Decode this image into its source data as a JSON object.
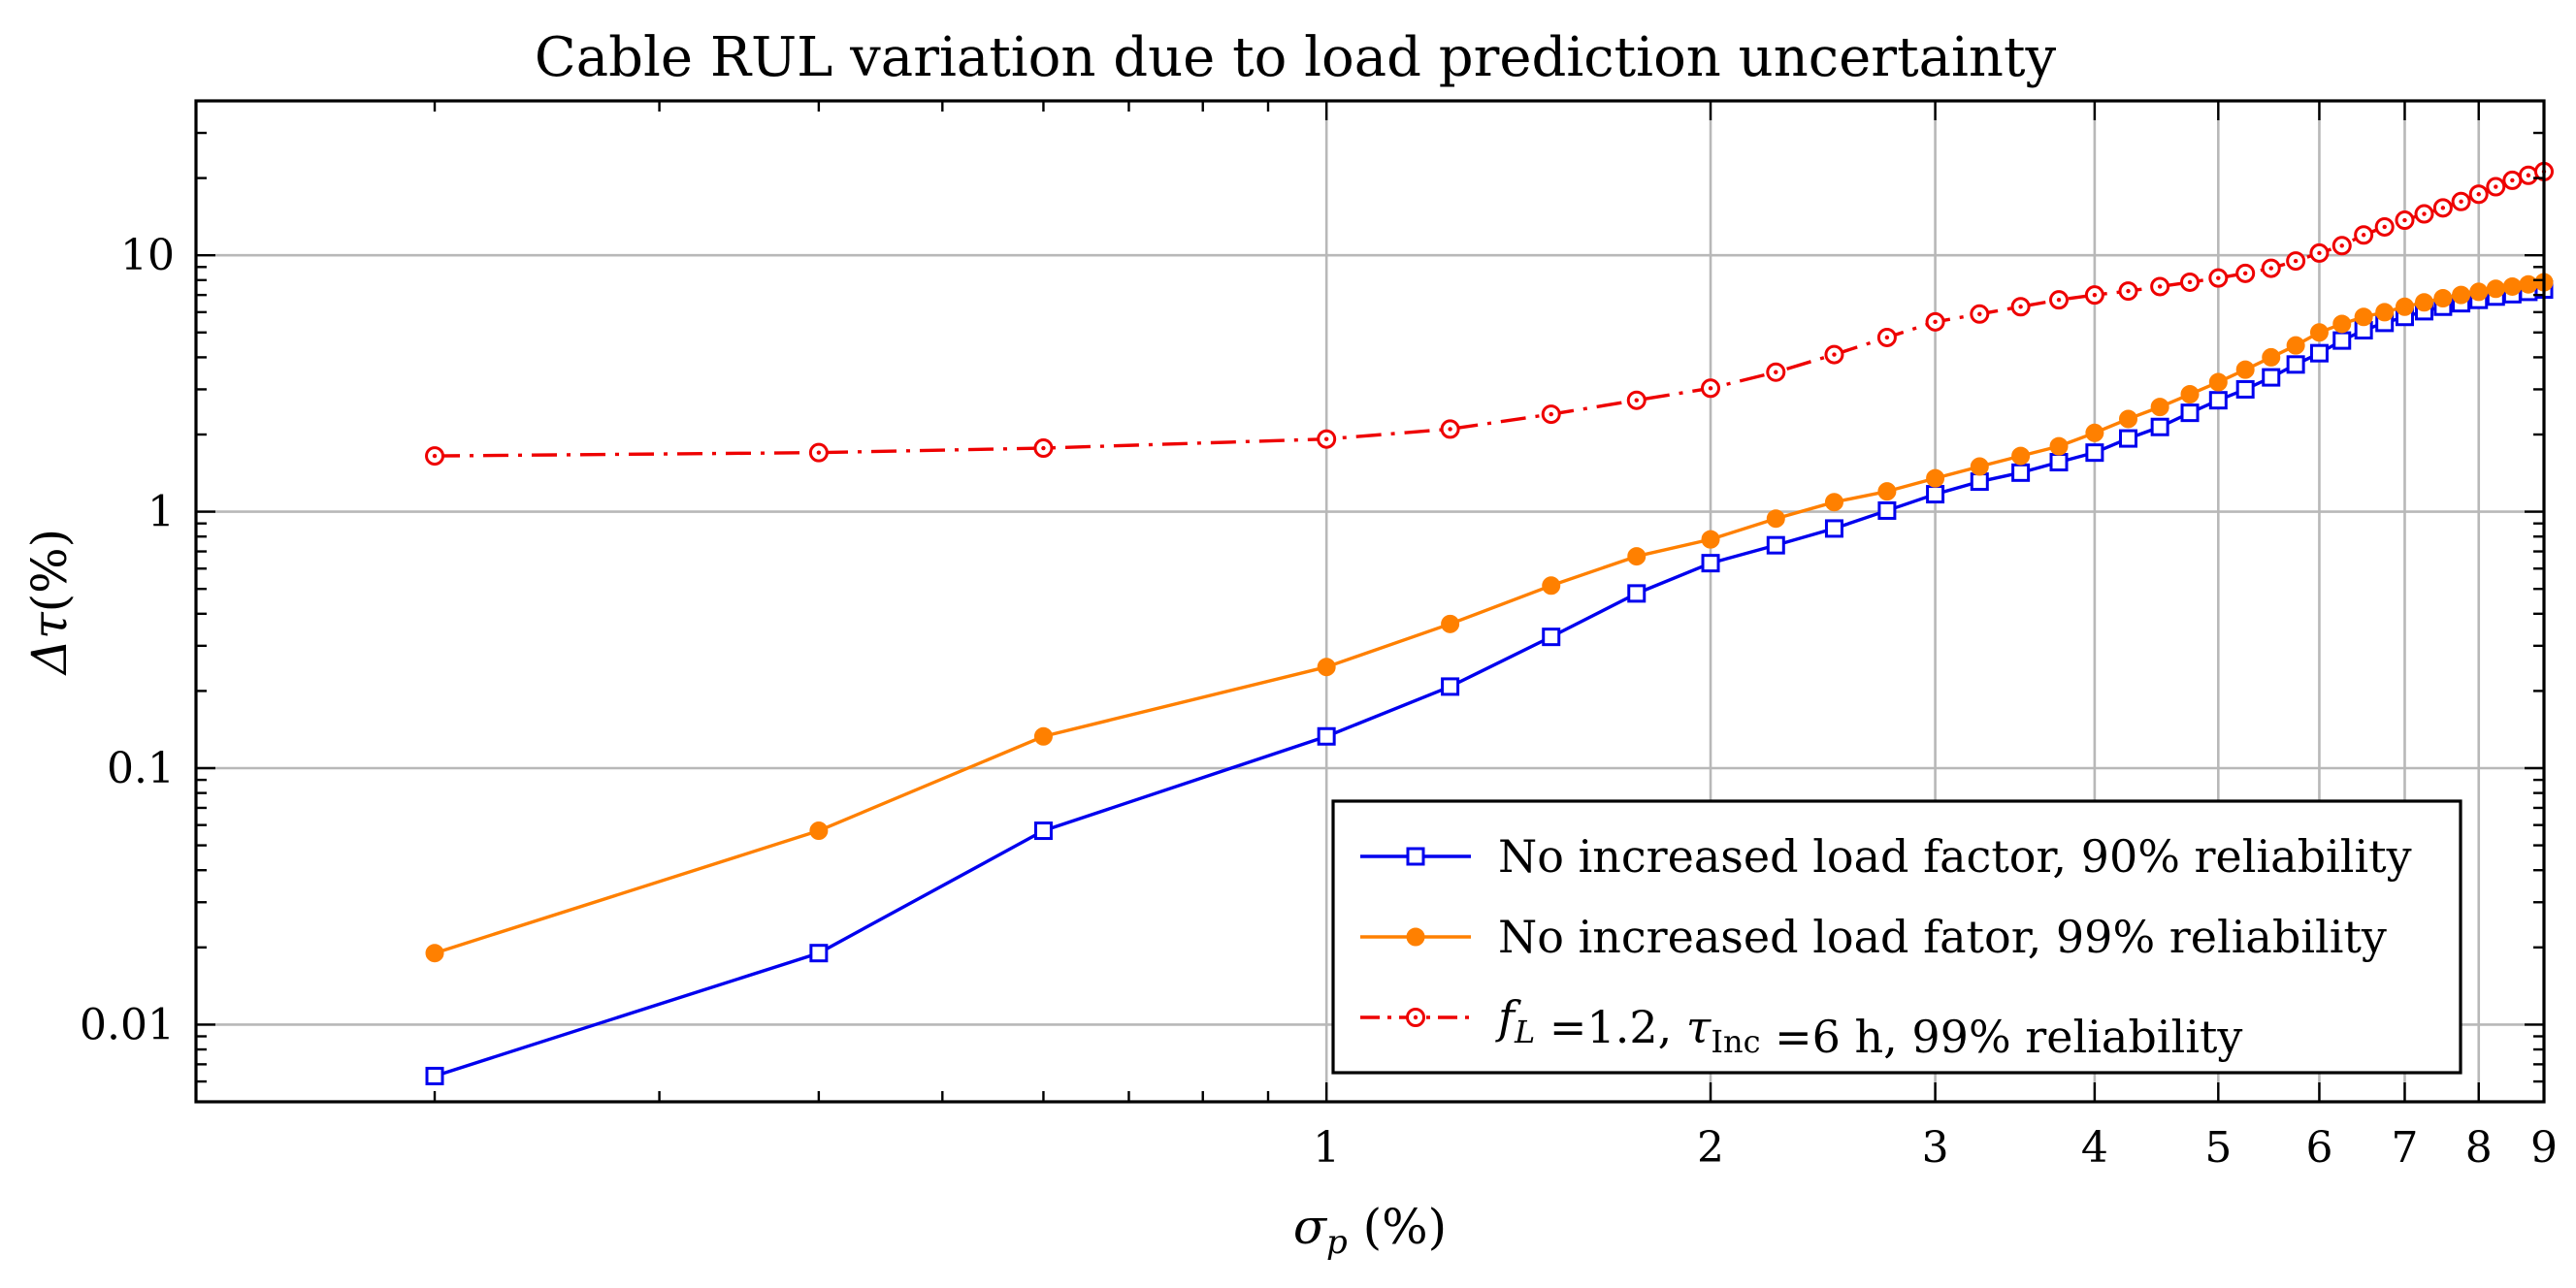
{
  "chart_data": {
    "type": "line",
    "title": "Cable RUL variation due to load prediction uncertainty",
    "xlabel": {
      "symbol": "σ",
      "sub": "p",
      "unit": " (%)"
    },
    "ylabel": {
      "symbol": "Δτ",
      "unit": "(%)"
    },
    "xscale": "log",
    "yscale": "log",
    "xlim": [
      0.13,
      9
    ],
    "ylim": [
      0.005,
      40
    ],
    "grid": true,
    "x_ticks": [
      {
        "value": 1,
        "label": "1"
      },
      {
        "value": 2,
        "label": "2"
      },
      {
        "value": 3,
        "label": "3"
      },
      {
        "value": 4,
        "label": "4"
      },
      {
        "value": 5,
        "label": "5"
      },
      {
        "value": 6,
        "label": "6"
      },
      {
        "value": 7,
        "label": "7"
      },
      {
        "value": 8,
        "label": "8"
      },
      {
        "value": 9,
        "label": "9"
      }
    ],
    "y_ticks": [
      {
        "value": 0.01,
        "label": "0.01"
      },
      {
        "value": 0.1,
        "label": "0.1"
      },
      {
        "value": 1,
        "label": "1"
      },
      {
        "value": 10,
        "label": "10"
      }
    ],
    "legend_position": "bottom-right",
    "series": [
      {
        "name": "No increased load factor, 90% reliability",
        "label_parts": [
          {
            "t": "No increased load factor, 90% reliability"
          }
        ],
        "color": "#0000ee",
        "marker": "square-open",
        "dash": "solid",
        "x": [
          0.2,
          0.4,
          0.6,
          1.0,
          1.25,
          1.5,
          1.75,
          2.0,
          2.25,
          2.5,
          2.75,
          3.0,
          3.25,
          3.5,
          3.75,
          4.0,
          4.25,
          4.5,
          4.75,
          5.0,
          5.25,
          5.5,
          5.75,
          6.0,
          6.25,
          6.5,
          6.75,
          7.0,
          7.25,
          7.5,
          7.75,
          8.0,
          8.25,
          8.5,
          8.75,
          9.0
        ],
        "y": [
          0.0063,
          0.019,
          0.057,
          0.133,
          0.208,
          0.325,
          0.48,
          0.63,
          0.74,
          0.86,
          1.01,
          1.17,
          1.31,
          1.42,
          1.56,
          1.7,
          1.93,
          2.14,
          2.43,
          2.72,
          3.0,
          3.34,
          3.75,
          4.15,
          4.65,
          5.1,
          5.45,
          5.75,
          6.05,
          6.3,
          6.5,
          6.7,
          6.9,
          7.05,
          7.2,
          7.35
        ]
      },
      {
        "name": "No increased load fator, 99% reliability",
        "label_parts": [
          {
            "t": "No increased load fator, 99% reliability"
          }
        ],
        "color": "#ff8000",
        "marker": "circle-filled",
        "dash": "solid",
        "x": [
          0.2,
          0.4,
          0.6,
          1.0,
          1.25,
          1.5,
          1.75,
          2.0,
          2.25,
          2.5,
          2.75,
          3.0,
          3.25,
          3.5,
          3.75,
          4.0,
          4.25,
          4.5,
          4.75,
          5.0,
          5.25,
          5.5,
          5.75,
          6.0,
          6.25,
          6.5,
          6.75,
          7.0,
          7.25,
          7.5,
          7.75,
          8.0,
          8.25,
          8.5,
          8.75,
          9.0
        ],
        "y": [
          0.019,
          0.057,
          0.133,
          0.248,
          0.365,
          0.515,
          0.67,
          0.78,
          0.94,
          1.09,
          1.2,
          1.35,
          1.5,
          1.65,
          1.8,
          2.03,
          2.3,
          2.56,
          2.87,
          3.2,
          3.58,
          4.0,
          4.45,
          5.0,
          5.4,
          5.75,
          6.0,
          6.3,
          6.55,
          6.8,
          7.0,
          7.2,
          7.4,
          7.55,
          7.7,
          7.85
        ]
      },
      {
        "name": "f_L =1.2, τ_Inc =6 h, 99% reliability",
        "label_parts": [
          {
            "t": "f",
            "italic": true
          },
          {
            "t": "L",
            "italic": true,
            "sub": true
          },
          {
            "t": " =1.2, "
          },
          {
            "t": "τ",
            "italic": true
          },
          {
            "t": "Inc",
            "sub": true
          },
          {
            "t": " =6 h, 99% reliability"
          }
        ],
        "color": "#ee0000",
        "marker": "circle-open-dot",
        "dash": "dashdot",
        "x": [
          0.2,
          0.4,
          0.6,
          1.0,
          1.25,
          1.5,
          1.75,
          2.0,
          2.25,
          2.5,
          2.75,
          3.0,
          3.25,
          3.5,
          3.75,
          4.0,
          4.25,
          4.5,
          4.75,
          5.0,
          5.25,
          5.5,
          5.75,
          6.0,
          6.25,
          6.5,
          6.75,
          7.0,
          7.25,
          7.5,
          7.75,
          8.0,
          8.25,
          8.5,
          8.75,
          9.0
        ],
        "y": [
          1.65,
          1.7,
          1.77,
          1.92,
          2.1,
          2.4,
          2.72,
          3.03,
          3.5,
          4.1,
          4.78,
          5.5,
          5.9,
          6.3,
          6.7,
          7.0,
          7.25,
          7.55,
          7.85,
          8.15,
          8.5,
          8.9,
          9.5,
          10.2,
          10.9,
          12.0,
          12.9,
          13.7,
          14.5,
          15.3,
          16.2,
          17.3,
          18.5,
          19.6,
          20.5,
          21.2
        ]
      }
    ]
  }
}
